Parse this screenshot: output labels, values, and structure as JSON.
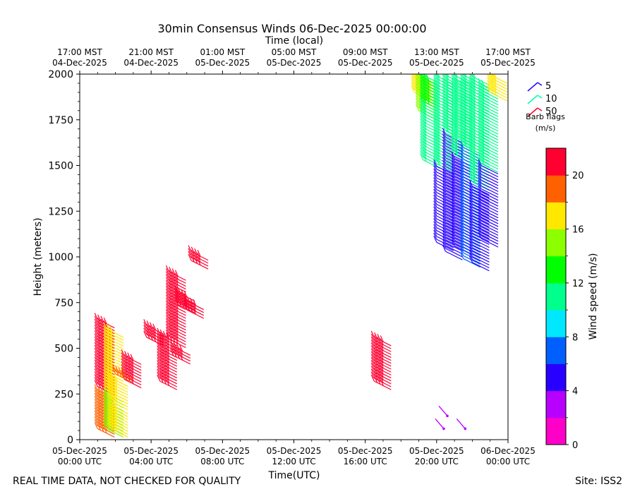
{
  "chart_data": {
    "type": "wind_barbs",
    "title": "30min Consensus Winds 06-Dec-2025 00:00:00",
    "xlabel": "Time(UTC)",
    "x2label": "Time (local)",
    "ylabel": "Height (meters)",
    "ylim": [
      0,
      2000
    ],
    "yticks": [
      0,
      250,
      500,
      750,
      1000,
      1250,
      1500,
      1750,
      2000
    ],
    "xticks_utc": [
      {
        "date": "05-Dec-2025",
        "time": "00:00 UTC"
      },
      {
        "date": "05-Dec-2025",
        "time": "04:00 UTC"
      },
      {
        "date": "05-Dec-2025",
        "time": "08:00 UTC"
      },
      {
        "date": "05-Dec-2025",
        "time": "12:00 UTC"
      },
      {
        "date": "05-Dec-2025",
        "time": "16:00 UTC"
      },
      {
        "date": "05-Dec-2025",
        "time": "20:00 UTC"
      },
      {
        "date": "06-Dec-2025",
        "time": "00:00 UTC"
      }
    ],
    "xticks_local": [
      {
        "time": "17:00 MST",
        "date": "04-Dec-2025"
      },
      {
        "time": "21:00 MST",
        "date": "04-Dec-2025"
      },
      {
        "time": "01:00 MST",
        "date": "05-Dec-2025"
      },
      {
        "time": "05:00 MST",
        "date": "05-Dec-2025"
      },
      {
        "time": "09:00 MST",
        "date": "05-Dec-2025"
      },
      {
        "time": "13:00 MST",
        "date": "05-Dec-2025"
      },
      {
        "time": "17:00 MST",
        "date": "05-Dec-2025"
      }
    ],
    "colorbar": {
      "label": "Wind speed (m/s)",
      "range": [
        0,
        22
      ],
      "ticks": [
        0,
        4,
        8,
        12,
        16,
        20
      ],
      "colors": [
        "#ff00c8",
        "#b800ff",
        "#2800ff",
        "#0060ff",
        "#00e8ff",
        "#00ff8c",
        "#00ff00",
        "#8cff00",
        "#ffe800",
        "#ff6000",
        "#ff0030"
      ]
    },
    "legend": {
      "items": [
        {
          "label": "5",
          "color": "#2800ff"
        },
        {
          "label": "10",
          "color": "#00ffaa"
        },
        {
          "label": "50",
          "color": "#ff0030"
        }
      ],
      "title_line1": "Barb flags",
      "title_line2": "(m/s)",
      "placement": "upper-right-outside"
    },
    "series": [
      {
        "t": 1.0,
        "hmin": 60,
        "hmax": 280,
        "speed": 19,
        "flag": 2
      },
      {
        "t": 1.0,
        "hmin": 290,
        "hmax": 670,
        "speed": 21,
        "flag": 2
      },
      {
        "t": 1.5,
        "hmin": 60,
        "hmax": 260,
        "speed": 15,
        "flag": 2
      },
      {
        "t": 1.5,
        "hmin": 270,
        "hmax": 610,
        "speed": 17,
        "flag": 2
      },
      {
        "t": 1.75,
        "hmin": 60,
        "hmax": 200,
        "speed": 16,
        "flag": 2
      },
      {
        "t": 1.75,
        "hmin": 210,
        "hmax": 350,
        "speed": 17,
        "flag": 2
      },
      {
        "t": 2.5,
        "hmin": 330,
        "hmax": 460,
        "speed": 21,
        "flag": 2
      },
      {
        "t": 2.0,
        "hmin": 360,
        "hmax": 390,
        "speed": 19,
        "flag": 2
      },
      {
        "t": 3.75,
        "hmin": 560,
        "hmax": 630,
        "speed": 21,
        "flag": 2
      },
      {
        "t": 4.5,
        "hmin": 320,
        "hmax": 580,
        "speed": 21,
        "flag": 2
      },
      {
        "t": 5.0,
        "hmin": 550,
        "hmax": 920,
        "speed": 21,
        "flag": 2
      },
      {
        "t": 5.25,
        "hmin": 460,
        "hmax": 520,
        "speed": 21,
        "flag": 2
      },
      {
        "t": 5.5,
        "hmin": 740,
        "hmax": 810,
        "speed": 21,
        "flag": 2
      },
      {
        "t": 6.0,
        "hmin": 710,
        "hmax": 770,
        "speed": 21,
        "flag": 2
      },
      {
        "t": 6.25,
        "hmin": 980,
        "hmax": 1040,
        "speed": 21,
        "flag": 2
      },
      {
        "t": 16.5,
        "hmin": 320,
        "hmax": 560,
        "speed": 21,
        "flag": 2
      },
      {
        "t": 18.75,
        "hmin": 1900,
        "hmax": 2000,
        "speed": 16,
        "flag": 2
      },
      {
        "t": 19.0,
        "hmin": 1800,
        "hmax": 2000,
        "speed": 15,
        "flag": 2
      },
      {
        "t": 19.25,
        "hmin": 1530,
        "hmax": 2000,
        "speed": 10,
        "flag": 1
      },
      {
        "t": 19.25,
        "hmin": 1850,
        "hmax": 1990,
        "speed": 13,
        "flag": 1
      },
      {
        "t": 20.0,
        "hmin": 1080,
        "hmax": 1500,
        "speed": 5,
        "flag": 0
      },
      {
        "t": 20.0,
        "hmin": 1510,
        "hmax": 2000,
        "speed": 10,
        "flag": 1
      },
      {
        "t": 20.5,
        "hmin": 1030,
        "hmax": 1680,
        "speed": 5,
        "flag": 0
      },
      {
        "t": 20.5,
        "hmin": 1690,
        "hmax": 2000,
        "speed": 11,
        "flag": 1
      },
      {
        "t": 21.0,
        "hmin": 1060,
        "hmax": 1550,
        "speed": 5,
        "flag": 0
      },
      {
        "t": 21.0,
        "hmin": 1560,
        "hmax": 2000,
        "speed": 10,
        "flag": 1
      },
      {
        "t": 21.5,
        "hmin": 990,
        "hmax": 1600,
        "speed": 6,
        "flag": 0
      },
      {
        "t": 21.5,
        "hmin": 1610,
        "hmax": 2000,
        "speed": 10,
        "flag": 1
      },
      {
        "t": 22.0,
        "hmin": 970,
        "hmax": 1400,
        "speed": 5,
        "flag": 0
      },
      {
        "t": 22.0,
        "hmin": 1410,
        "hmax": 2000,
        "speed": 10,
        "flag": 1
      },
      {
        "t": 22.5,
        "hmin": 1100,
        "hmax": 1500,
        "speed": 5,
        "flag": 0
      },
      {
        "t": 22.5,
        "hmin": 1510,
        "hmax": 1950,
        "speed": 11,
        "flag": 1
      },
      {
        "t": 23.0,
        "hmin": 1900,
        "hmax": 2000,
        "speed": 17,
        "flag": 2
      }
    ],
    "low_barbs": [
      {
        "t": 20.4,
        "h": 60,
        "speed": 3
      },
      {
        "t": 20.6,
        "h": 130,
        "speed": 3
      },
      {
        "t": 21.6,
        "h": 60,
        "speed": 3
      }
    ]
  },
  "footer": {
    "left": "REAL TIME DATA, NOT CHECKED FOR QUALITY",
    "right": "Site: ISS2"
  }
}
